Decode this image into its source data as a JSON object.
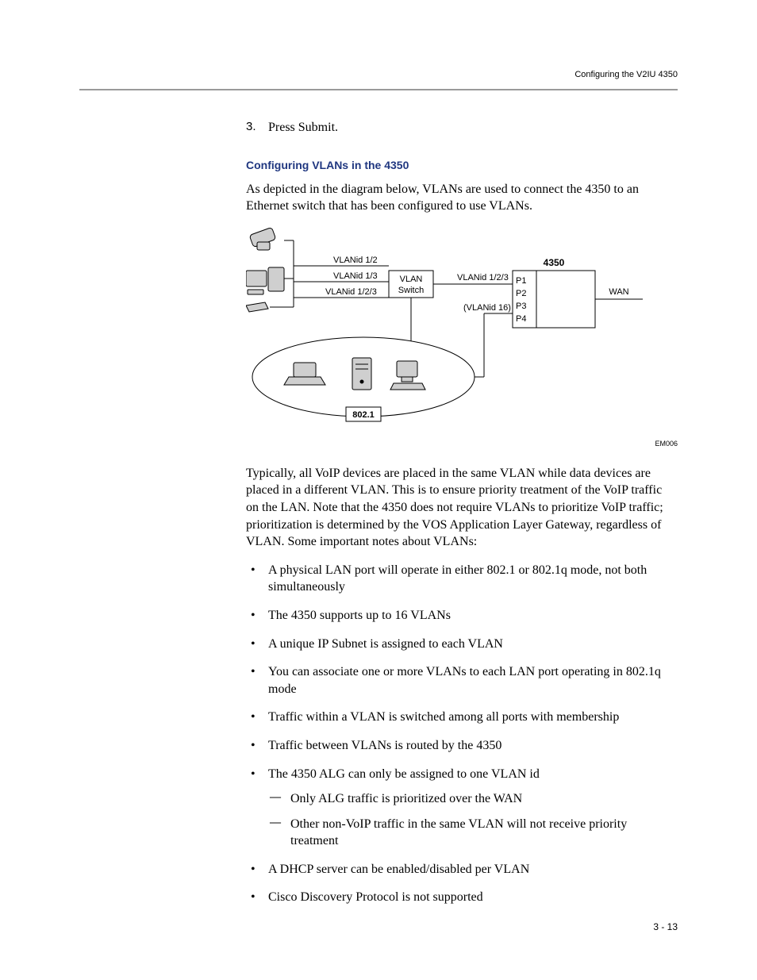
{
  "header": {
    "running_title": "Configuring the V2IU 4350"
  },
  "step": {
    "number": "3.",
    "text": "Press Submit."
  },
  "section": {
    "title": "Configuring VLANs in the 4350",
    "intro": "As depicted in the diagram below, VLANs are used to connect the 4350 to an Ethernet switch that has been configured to use VLANs."
  },
  "figure": {
    "code": "EM006",
    "labels": {
      "vlan_1_2": "VLANid 1/2",
      "vlan_1_3": "VLANid 1/3",
      "vlan_1_2_3_left": "VLANid 1/2/3",
      "vlan_switch_l1": "VLAN",
      "vlan_switch_l2": "Switch",
      "vlan_1_2_3_right": "VLANid 1/2/3",
      "vlan_16": "(VLANid 16)",
      "device_title": "4350",
      "p1": "P1",
      "p2": "P2",
      "p3": "P3",
      "p4": "P4",
      "wan": "WAN",
      "bottom_label": "802.1"
    },
    "style": {
      "font_family": "Arial, Helvetica, sans-serif",
      "label_fontsize": 11,
      "bold_fontsize": 12,
      "line_color": "#000000",
      "fill_color": "#ffffff",
      "shade_color": "#cfcfcf"
    }
  },
  "post_fig_para": "Typically, all VoIP devices are placed in the same VLAN while data devices are placed in a different VLAN. This is to ensure priority treatment of the VoIP traffic on the LAN. Note that the 4350 does not require VLANs to prioritize VoIP traffic; prioritization is determined by the VOS Application Layer Gateway, regardless of VLAN. Some important notes about VLANs:",
  "bullets": [
    "A physical LAN port will operate in either 802.1 or 802.1q mode, not both simultaneously",
    "The 4350 supports up to 16 VLANs",
    "A unique IP Subnet is assigned to each VLAN",
    "You can associate one or more VLANs to each LAN port operating in 802.1q mode",
    "Traffic within a VLAN is switched among all ports with membership",
    "Traffic between VLANs is routed by the 4350",
    "The 4350 ALG can only be assigned to one VLAN id",
    "A DHCP server can be enabled/disabled per VLAN",
    "Cisco Discovery Protocol is not supported"
  ],
  "sub_bullets_after_index": 6,
  "sub_bullets": [
    "Only ALG traffic is prioritized over the WAN",
    "Other non-VoIP traffic in the same VLAN will not receive priority treatment"
  ],
  "footer": {
    "page_number": "3 - 13"
  }
}
